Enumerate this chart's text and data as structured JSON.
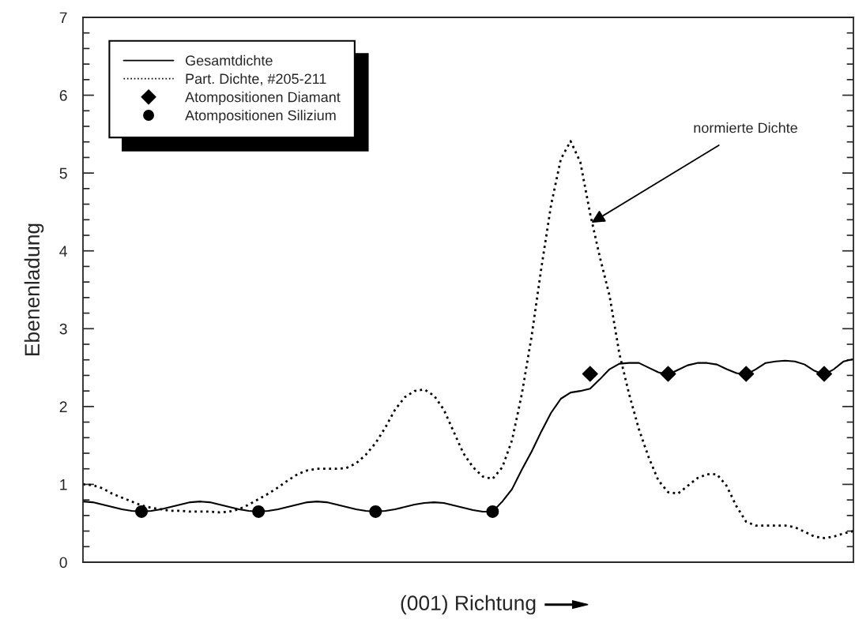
{
  "chart_data": {
    "type": "line",
    "xlabel": "(001) Richtung",
    "ylabel": "Ebenenladung",
    "categories": [
      null,
      null,
      null,
      null,
      null,
      null,
      null,
      null,
      null,
      null,
      null,
      null,
      null,
      null,
      null,
      null,
      null,
      null,
      null,
      null,
      null,
      null,
      null,
      null,
      null,
      null,
      null,
      null,
      null,
      null,
      null,
      null,
      null,
      null,
      null,
      null,
      null,
      null,
      null,
      null,
      null,
      null,
      null,
      null,
      null,
      null,
      null,
      null,
      null,
      null,
      null,
      null,
      null,
      null,
      null,
      null,
      null,
      null,
      null,
      null,
      null,
      null,
      null,
      null,
      null,
      null,
      null,
      null,
      null,
      null,
      null,
      null,
      null,
      null,
      null,
      null,
      null,
      null,
      null,
      null
    ],
    "series": [
      {
        "name": "Gesamtdichte",
        "line_style": "solid",
        "color": "#000000",
        "values": [
          0.78,
          0.77,
          0.74,
          0.71,
          0.68,
          0.66,
          0.65,
          0.66,
          0.68,
          0.71,
          0.74,
          0.77,
          0.78,
          0.77,
          0.74,
          0.71,
          0.68,
          0.66,
          0.65,
          0.66,
          0.68,
          0.71,
          0.74,
          0.77,
          0.78,
          0.77,
          0.74,
          0.71,
          0.68,
          0.66,
          0.65,
          0.66,
          0.68,
          0.71,
          0.74,
          0.76,
          0.77,
          0.76,
          0.73,
          0.7,
          0.67,
          0.65,
          0.65,
          0.78,
          0.94,
          1.19,
          1.42,
          1.68,
          1.92,
          2.1,
          2.18,
          2.2,
          2.23,
          2.35,
          2.48,
          2.55,
          2.56,
          2.56,
          2.5,
          2.44,
          2.41,
          2.47,
          2.53,
          2.56,
          2.56,
          2.54,
          2.48,
          2.43,
          2.41,
          2.48,
          2.56,
          2.58,
          2.59,
          2.58,
          2.54,
          2.46,
          2.41,
          2.48,
          2.58,
          2.61
        ]
      },
      {
        "name": "Part. Dichte, #205-211",
        "line_style": "dotted",
        "color": "#000000",
        "values": [
          1.0,
          0.99,
          0.95,
          0.88,
          0.83,
          0.78,
          0.73,
          0.7,
          0.68,
          0.66,
          0.66,
          0.65,
          0.65,
          0.65,
          0.64,
          0.65,
          0.68,
          0.74,
          0.81,
          0.88,
          0.96,
          1.05,
          1.13,
          1.18,
          1.2,
          1.2,
          1.2,
          1.21,
          1.27,
          1.38,
          1.53,
          1.73,
          1.96,
          2.12,
          2.2,
          2.22,
          2.14,
          1.96,
          1.68,
          1.4,
          1.22,
          1.1,
          1.07,
          1.22,
          1.57,
          2.16,
          2.9,
          3.78,
          4.59,
          5.18,
          5.41,
          5.14,
          4.48,
          3.92,
          3.42,
          2.68,
          2.16,
          1.71,
          1.35,
          1.05,
          0.9,
          0.88,
          0.98,
          1.08,
          1.13,
          1.13,
          0.98,
          0.72,
          0.52,
          0.47,
          0.47,
          0.47,
          0.47,
          0.45,
          0.39,
          0.33,
          0.31,
          0.33,
          0.37,
          0.4
        ]
      },
      {
        "name": "Atompositionen Diamant",
        "type": "scatter",
        "marker": "diamond",
        "color": "#000000",
        "values": [
          null,
          null,
          null,
          null,
          null,
          null,
          null,
          null,
          null,
          null,
          null,
          null,
          null,
          null,
          null,
          null,
          null,
          null,
          null,
          null,
          null,
          null,
          null,
          null,
          null,
          null,
          null,
          null,
          null,
          null,
          null,
          null,
          null,
          null,
          null,
          null,
          null,
          null,
          null,
          null,
          null,
          null,
          null,
          null,
          null,
          null,
          null,
          null,
          null,
          null,
          null,
          null,
          2.42,
          null,
          null,
          null,
          null,
          null,
          null,
          null,
          2.42,
          null,
          null,
          null,
          null,
          null,
          null,
          null,
          2.42,
          null,
          null,
          null,
          null,
          null,
          null,
          null,
          2.42,
          null,
          null,
          null
        ]
      },
      {
        "name": "Atompositionen Silizium",
        "type": "scatter",
        "marker": "circle",
        "color": "#000000",
        "values": [
          null,
          null,
          null,
          null,
          null,
          null,
          0.65,
          null,
          null,
          null,
          null,
          null,
          null,
          null,
          null,
          null,
          null,
          null,
          0.65,
          null,
          null,
          null,
          null,
          null,
          null,
          null,
          null,
          null,
          null,
          null,
          0.65,
          null,
          null,
          null,
          null,
          null,
          null,
          null,
          null,
          null,
          null,
          null,
          0.65,
          null,
          null,
          null,
          null,
          null,
          null,
          null,
          null,
          null,
          null,
          null,
          null,
          null,
          null,
          null,
          null,
          null,
          null,
          null,
          null,
          null,
          null,
          null,
          null,
          null,
          null,
          null,
          null,
          null,
          null,
          null,
          null,
          null,
          null,
          null,
          null,
          null
        ]
      }
    ],
    "ylim": [
      0,
      7
    ],
    "yticks": [
      0,
      1,
      2,
      3,
      4,
      5,
      6,
      7
    ],
    "tick_labels": "y",
    "grid": false,
    "legend": "top left",
    "annotations": [
      "normierte Dichte"
    ]
  }
}
